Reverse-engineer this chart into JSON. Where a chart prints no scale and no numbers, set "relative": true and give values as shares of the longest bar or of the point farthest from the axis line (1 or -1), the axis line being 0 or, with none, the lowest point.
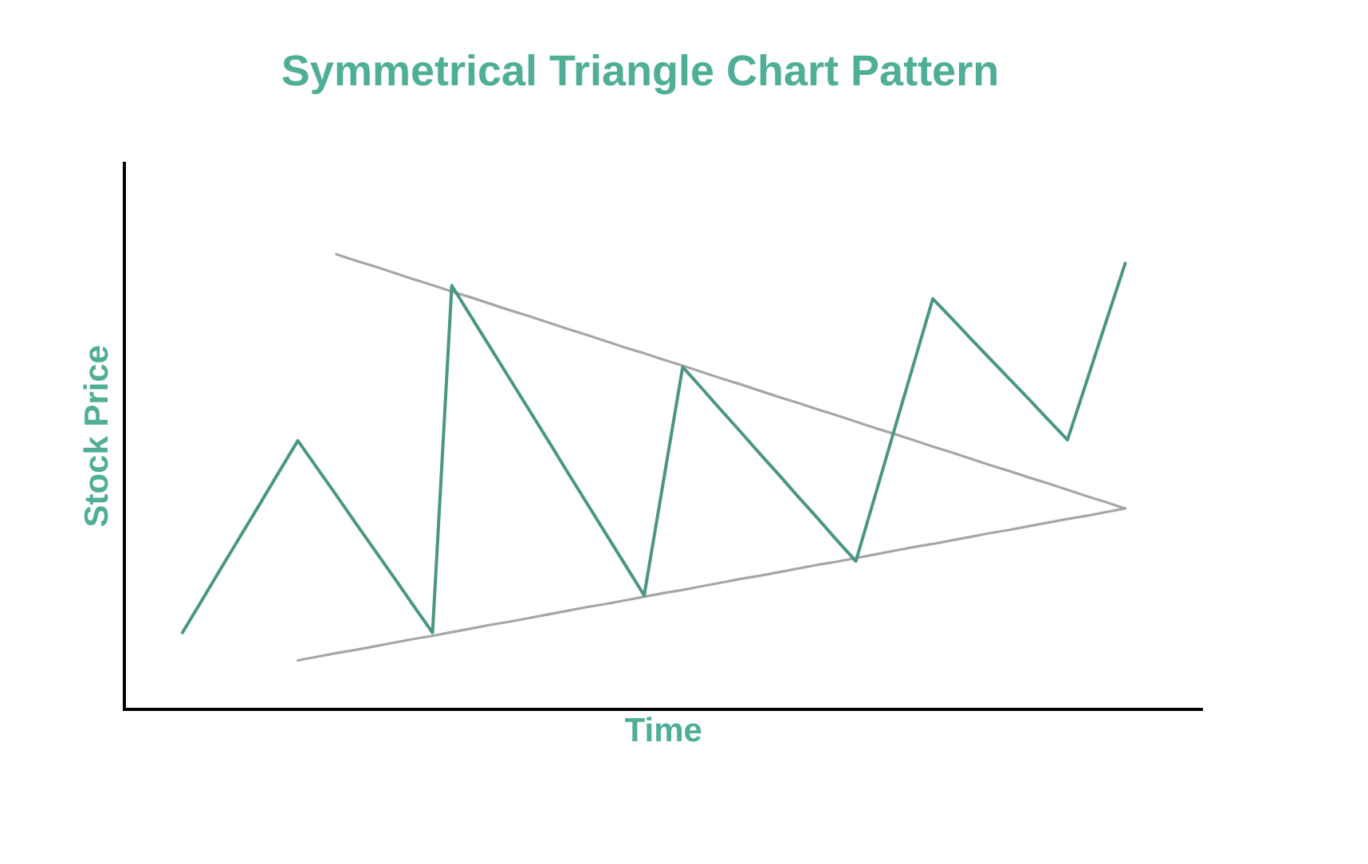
{
  "chart_data": {
    "type": "line",
    "title": "Symmetrical Triangle Chart Pattern",
    "xlabel": "Time",
    "ylabel": "Stock Price",
    "relative": true,
    "tick_labels": false,
    "marker": "none",
    "categories": [
      null,
      null,
      null,
      null,
      null,
      null,
      null,
      null,
      null,
      null,
      null,
      null,
      null,
      null,
      null,
      null,
      null,
      null,
      null,
      null,
      null,
      null,
      null,
      null,
      null,
      null,
      null,
      null,
      null,
      null,
      null,
      null,
      null,
      null,
      null,
      null,
      null,
      null,
      null,
      null,
      null,
      null,
      null,
      null,
      null,
      null,
      null,
      null,
      null,
      null,
      null,
      null,
      null,
      null,
      null,
      null,
      null
    ],
    "series": [
      {
        "color": "#4a9684",
        "values": [
          null,
          null,
          null,
          0.168,
          0.238,
          0.309,
          0.379,
          0.449,
          0.52,
          0.59,
          0.53,
          0.47,
          0.409,
          0.349,
          0.289,
          0.228,
          0.168,
          0.931,
          0.863,
          0.795,
          0.727,
          0.659,
          0.591,
          0.522,
          0.454,
          0.386,
          0.318,
          0.25,
          0.501,
          0.752,
          0.705,
          0.657,
          0.61,
          0.562,
          0.515,
          0.467,
          0.42,
          0.372,
          0.325,
          0.469,
          0.614,
          0.758,
          0.902,
          0.858,
          0.813,
          0.769,
          0.725,
          0.681,
          0.636,
          0.592,
          0.721,
          0.851,
          0.98,
          null,
          null,
          null,
          null
        ]
      },
      {
        "color": "#a6a6a6",
        "values": [
          null,
          null,
          null,
          null,
          null,
          null,
          null,
          null,
          null,
          null,
          null,
          1,
          0.986,
          0.973,
          0.959,
          0.945,
          0.932,
          0.918,
          0.905,
          0.891,
          0.877,
          0.864,
          0.85,
          0.836,
          0.823,
          0.809,
          0.795,
          0.782,
          0.768,
          0.755,
          0.741,
          0.727,
          0.714,
          0.7,
          0.686,
          0.673,
          0.659,
          0.646,
          0.632,
          0.618,
          0.605,
          0.591,
          0.577,
          0.564,
          0.55,
          0.536,
          0.523,
          0.509,
          0.496,
          0.482,
          0.468,
          0.455,
          0.441,
          null,
          null,
          null,
          null
        ]
      },
      {
        "color": "#a6a6a6",
        "values": [
          null,
          null,
          null,
          null,
          null,
          null,
          null,
          null,
          null,
          0.107,
          0.115,
          0.123,
          0.13,
          0.138,
          0.146,
          0.154,
          0.161,
          0.169,
          0.177,
          0.185,
          0.192,
          0.2,
          0.208,
          0.216,
          0.224,
          0.231,
          0.239,
          0.247,
          0.255,
          0.262,
          0.27,
          0.278,
          0.286,
          0.293,
          0.301,
          0.309,
          0.317,
          0.324,
          0.332,
          0.34,
          0.348,
          0.356,
          0.363,
          0.371,
          0.379,
          0.387,
          0.394,
          0.402,
          0.41,
          0.418,
          0.425,
          0.433,
          0.441,
          null,
          null,
          null,
          null
        ]
      }
    ]
  }
}
